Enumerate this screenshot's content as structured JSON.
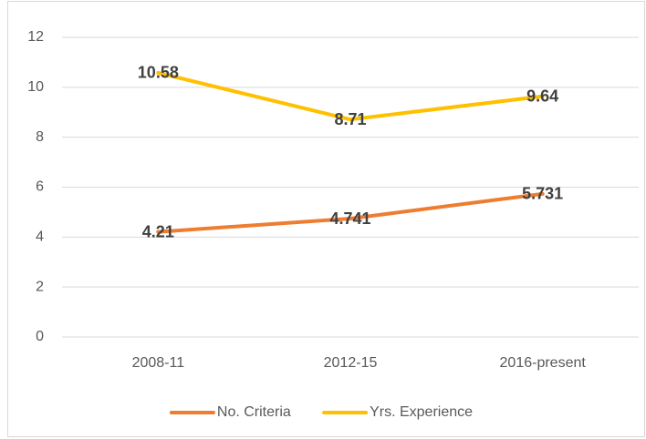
{
  "chart_data": {
    "type": "line",
    "categories": [
      "2008-11",
      "2012-15",
      "2016-present"
    ],
    "series": [
      {
        "name": "No. Criteria",
        "color": "#ED7D31",
        "values": [
          4.21,
          4.741,
          5.731
        ]
      },
      {
        "name": "Yrs. Experience",
        "color": "#FFC000",
        "values": [
          10.58,
          8.71,
          9.64
        ]
      }
    ],
    "ylim": [
      0,
      12
    ],
    "yticks": [
      0,
      2,
      4,
      6,
      8,
      10,
      12
    ],
    "grid": true,
    "legend": "bottom",
    "data_labels": true
  }
}
